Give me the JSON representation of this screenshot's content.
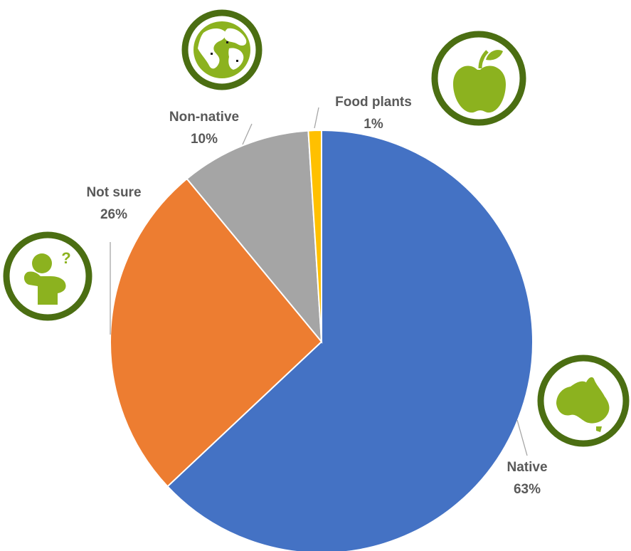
{
  "chart_data": {
    "type": "pie",
    "title": "",
    "slices": [
      {
        "label": "Native",
        "value": 63,
        "pct_label": "63%",
        "color": "#4472c4",
        "icon": "australia-map-icon"
      },
      {
        "label": "Not sure",
        "value": 26,
        "pct_label": "26%",
        "color": "#ed7d31",
        "icon": "thinking-person-icon"
      },
      {
        "label": "Non-native",
        "value": 10,
        "pct_label": "10%",
        "color": "#a5a5a5",
        "icon": "globe-icon"
      },
      {
        "label": "Food plants",
        "value": 1,
        "pct_label": "1%",
        "color": "#ffc000",
        "icon": "apple-icon"
      }
    ],
    "start_angle": "12 o'clock",
    "direction": "clockwise",
    "legend": "none",
    "data_labels": "outside with leader lines",
    "icon_ring_color": "#4b6e12",
    "icon_fill_color": "#8cb21f"
  }
}
